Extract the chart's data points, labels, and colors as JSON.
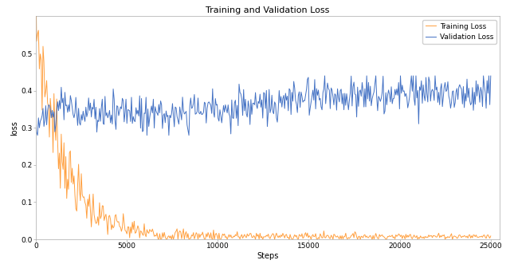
{
  "title": "Training and Validation Loss",
  "xlabel": "Steps",
  "ylabel": "loss",
  "xlim": [
    0,
    25500
  ],
  "ylim": [
    0.0,
    0.6
  ],
  "xticks": [
    0,
    5000,
    10000,
    15000,
    20000,
    25000
  ],
  "yticks": [
    0.0,
    0.1,
    0.2,
    0.3,
    0.4,
    0.5
  ],
  "train_color": "#FFA040",
  "val_color": "#4472C4",
  "train_label": "Training Loss",
  "val_label": "Validation Loss",
  "n_steps": 500,
  "seed": 7,
  "background_color": "#ffffff",
  "title_fontsize": 8,
  "axis_fontsize": 7,
  "tick_fontsize": 6.5,
  "legend_fontsize": 6.5,
  "linewidth": 0.7
}
